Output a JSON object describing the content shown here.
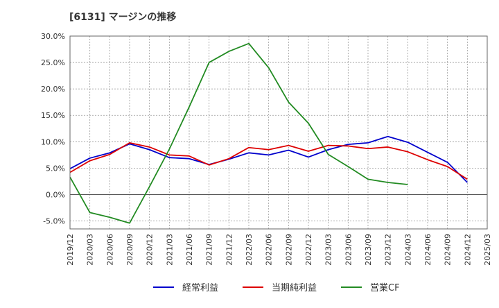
{
  "chart_data": {
    "type": "line",
    "title": "[6131]  マージンの推移",
    "xlabel": "",
    "ylabel": "",
    "ylim": [
      -6.5,
      30
    ],
    "yticks": [
      30,
      25,
      20,
      15,
      10,
      5,
      0,
      -5
    ],
    "ytick_labels": [
      "30.0%",
      "25.0%",
      "20.0%",
      "15.0%",
      "10.0%",
      "5.0%",
      "0.0%",
      "-5.0%"
    ],
    "x": [
      "2019/12",
      "2020/03",
      "2020/06",
      "2020/09",
      "2020/12",
      "2021/03",
      "2021/06",
      "2021/09",
      "2021/12",
      "2022/03",
      "2022/06",
      "2022/09",
      "2022/12",
      "2023/03",
      "2023/06",
      "2023/09",
      "2023/12",
      "2024/03",
      "2024/06",
      "2024/09",
      "2024/12",
      "2025/03"
    ],
    "grid": true,
    "legend_position": "bottom",
    "series": [
      {
        "name": "経常利益",
        "color": "#0000cc",
        "values": [
          4.9,
          6.9,
          7.9,
          9.6,
          8.5,
          7.0,
          6.8,
          5.7,
          6.7,
          7.9,
          7.5,
          8.4,
          7.1,
          8.5,
          9.5,
          9.8,
          11.0,
          9.9,
          8.0,
          6.1,
          2.3,
          null
        ]
      },
      {
        "name": "当期純利益",
        "color": "#dd0000",
        "values": [
          4.2,
          6.4,
          7.6,
          9.8,
          9.0,
          7.5,
          7.3,
          5.6,
          6.8,
          8.9,
          8.5,
          9.3,
          8.2,
          9.3,
          9.2,
          8.7,
          9.0,
          8.1,
          6.6,
          5.3,
          2.9,
          null
        ]
      },
      {
        "name": "営業CF",
        "color": "#228b22",
        "values": [
          3.3,
          -3.4,
          -4.3,
          -5.4,
          1.5,
          8.6,
          16.6,
          25.0,
          27.1,
          28.6,
          24.0,
          17.5,
          13.5,
          7.6,
          5.3,
          2.9,
          2.3,
          1.9,
          null,
          null,
          null,
          null
        ]
      }
    ]
  }
}
